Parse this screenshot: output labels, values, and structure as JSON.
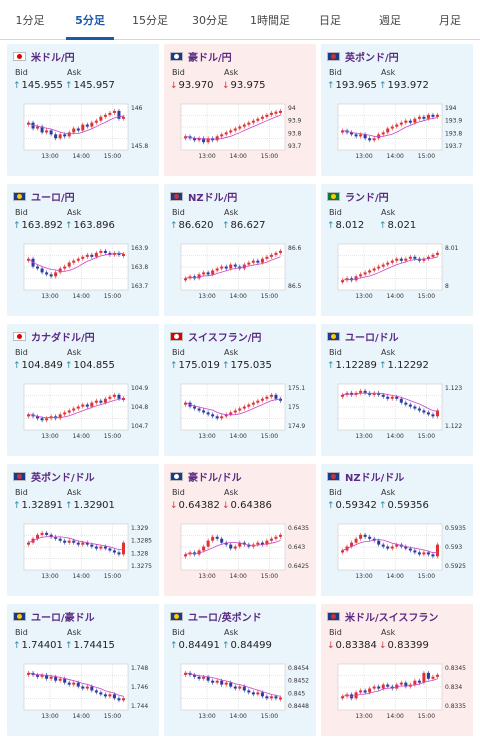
{
  "tabs": [
    {
      "label": "1分足",
      "active": false
    },
    {
      "label": "5分足",
      "active": true
    },
    {
      "label": "15分足",
      "active": false
    },
    {
      "label": "30分足",
      "active": false
    },
    {
      "label": "1時間足",
      "active": false
    },
    {
      "label": "日足",
      "active": false
    },
    {
      "label": "週足",
      "active": false
    },
    {
      "label": "月足",
      "active": false
    }
  ],
  "labels": {
    "bid": "Bid",
    "ask": "Ask"
  },
  "time_labels": [
    "13:00",
    "14:00",
    "15:00"
  ],
  "colors": {
    "up_bg": "#e9f4fb",
    "down_bg": "#fcecec",
    "up_arrow": "#2a8aa0",
    "down_arrow": "#d03a3a",
    "candle_up": "#e03030",
    "candle_down": "#2a3aa0",
    "ma": "#cc44cc",
    "pair": "#5b2a82"
  },
  "pairs": [
    {
      "name": "米ドル/円",
      "dir": "up",
      "bid": "145.955",
      "ask": "145.957",
      "flag": "jp-us",
      "yticks": [
        "146",
        "145.8"
      ],
      "trend": [
        0.6,
        0.45,
        0.5,
        0.35,
        0.4,
        0.3,
        0.2,
        0.3,
        0.25,
        0.35,
        0.45,
        0.4,
        0.55,
        0.5,
        0.6,
        0.65,
        0.75,
        0.8,
        0.85,
        0.9,
        0.7,
        0.75
      ]
    },
    {
      "name": "豪ドル/円",
      "dir": "down",
      "bid": "93.970",
      "ask": "93.975",
      "flag": "au-jp",
      "yticks": [
        "94",
        "93.9",
        "93.8",
        "93.7"
      ],
      "trend": [
        0.25,
        0.2,
        0.15,
        0.2,
        0.1,
        0.2,
        0.15,
        0.25,
        0.3,
        0.35,
        0.4,
        0.45,
        0.5,
        0.55,
        0.6,
        0.65,
        0.7,
        0.75,
        0.8,
        0.85,
        0.88,
        0.9
      ]
    },
    {
      "name": "英ポンド/円",
      "dir": "up",
      "bid": "193.965",
      "ask": "193.972",
      "flag": "gb-jp",
      "yticks": [
        "194",
        "193.9",
        "193.8",
        "193.7"
      ],
      "trend": [
        0.4,
        0.35,
        0.3,
        0.25,
        0.3,
        0.2,
        0.15,
        0.2,
        0.3,
        0.35,
        0.45,
        0.5,
        0.55,
        0.6,
        0.65,
        0.6,
        0.7,
        0.75,
        0.7,
        0.8,
        0.75,
        0.8
      ]
    },
    {
      "name": "ユーロ/円",
      "dir": "up",
      "bid": "163.892",
      "ask": "163.896",
      "flag": "eu-jp",
      "yticks": [
        "163.9",
        "163.8",
        "163.7"
      ],
      "trend": [
        0.7,
        0.5,
        0.45,
        0.35,
        0.3,
        0.25,
        0.35,
        0.45,
        0.5,
        0.6,
        0.65,
        0.7,
        0.75,
        0.8,
        0.75,
        0.85,
        0.9,
        0.85,
        0.8,
        0.85,
        0.8,
        0.82
      ]
    },
    {
      "name": "NZドル/円",
      "dir": "up",
      "bid": "86.620",
      "ask": "86.627",
      "flag": "nz-jp",
      "yticks": [
        "86.6",
        "86.5"
      ],
      "trend": [
        0.2,
        0.25,
        0.2,
        0.3,
        0.35,
        0.3,
        0.4,
        0.45,
        0.5,
        0.45,
        0.55,
        0.5,
        0.45,
        0.55,
        0.6,
        0.65,
        0.6,
        0.7,
        0.75,
        0.8,
        0.85,
        0.9
      ]
    },
    {
      "name": "ランド/円",
      "dir": "up",
      "bid": "8.012",
      "ask": "8.021",
      "flag": "za-jp",
      "yticks": [
        "8.01",
        "8"
      ],
      "trend": [
        0.15,
        0.2,
        0.15,
        0.25,
        0.3,
        0.35,
        0.4,
        0.45,
        0.5,
        0.55,
        0.6,
        0.65,
        0.7,
        0.65,
        0.7,
        0.75,
        0.7,
        0.65,
        0.7,
        0.75,
        0.8,
        0.85
      ]
    },
    {
      "name": "カナダドル/円",
      "dir": "up",
      "bid": "104.849",
      "ask": "104.855",
      "flag": "ca-jp",
      "yticks": [
        "104.9",
        "104.8",
        "104.7"
      ],
      "trend": [
        0.3,
        0.25,
        0.2,
        0.15,
        0.2,
        0.25,
        0.2,
        0.3,
        0.35,
        0.4,
        0.45,
        0.5,
        0.55,
        0.5,
        0.6,
        0.65,
        0.6,
        0.7,
        0.75,
        0.8,
        0.7,
        0.72
      ]
    },
    {
      "name": "スイスフラン/円",
      "dir": "up",
      "bid": "175.019",
      "ask": "175.035",
      "flag": "ch-jp",
      "yticks": [
        "175.1",
        "175",
        "174.9"
      ],
      "trend": [
        0.6,
        0.5,
        0.45,
        0.4,
        0.35,
        0.3,
        0.25,
        0.2,
        0.25,
        0.3,
        0.35,
        0.4,
        0.45,
        0.5,
        0.55,
        0.6,
        0.65,
        0.7,
        0.75,
        0.8,
        0.7,
        0.65
      ]
    },
    {
      "name": "ユーロ/ドル",
      "dir": "up",
      "bid": "1.12289",
      "ask": "1.12292",
      "flag": "eu-us",
      "yticks": [
        "1.123",
        "1.122"
      ],
      "trend": [
        0.8,
        0.85,
        0.8,
        0.85,
        0.9,
        0.85,
        0.8,
        0.85,
        0.8,
        0.75,
        0.7,
        0.75,
        0.7,
        0.6,
        0.55,
        0.5,
        0.45,
        0.4,
        0.35,
        0.3,
        0.25,
        0.4
      ]
    },
    {
      "name": "英ポンド/ドル",
      "dir": "up",
      "bid": "1.32891",
      "ask": "1.32901",
      "flag": "gb-us",
      "yticks": [
        "1.329",
        "1.3285",
        "1.328",
        "1.3275"
      ],
      "trend": [
        0.6,
        0.7,
        0.8,
        0.85,
        0.8,
        0.75,
        0.7,
        0.65,
        0.6,
        0.65,
        0.6,
        0.55,
        0.6,
        0.55,
        0.5,
        0.45,
        0.5,
        0.45,
        0.4,
        0.35,
        0.3,
        0.6
      ]
    },
    {
      "name": "豪ドル/ドル",
      "dir": "down",
      "bid": "0.64382",
      "ask": "0.64386",
      "flag": "au-us",
      "yticks": [
        "0.6435",
        "0.643",
        "0.6425"
      ],
      "trend": [
        0.3,
        0.35,
        0.3,
        0.4,
        0.5,
        0.65,
        0.75,
        0.7,
        0.6,
        0.55,
        0.45,
        0.5,
        0.6,
        0.55,
        0.5,
        0.55,
        0.6,
        0.55,
        0.65,
        0.7,
        0.75,
        0.8
      ]
    },
    {
      "name": "NZドル/ドル",
      "dir": "up",
      "bid": "0.59342",
      "ask": "0.59356",
      "flag": "nz-us",
      "yticks": [
        "0.5935",
        "0.593",
        "0.5925"
      ],
      "trend": [
        0.4,
        0.5,
        0.6,
        0.7,
        0.8,
        0.75,
        0.7,
        0.65,
        0.55,
        0.5,
        0.45,
        0.5,
        0.55,
        0.5,
        0.45,
        0.4,
        0.35,
        0.3,
        0.35,
        0.3,
        0.25,
        0.55
      ]
    },
    {
      "name": "ユーロ/豪ドル",
      "dir": "up",
      "bid": "1.74401",
      "ask": "1.74415",
      "flag": "eu-au",
      "yticks": [
        "1.748",
        "1.746",
        "1.744"
      ],
      "trend": [
        0.85,
        0.8,
        0.75,
        0.8,
        0.7,
        0.75,
        0.65,
        0.7,
        0.6,
        0.55,
        0.6,
        0.5,
        0.45,
        0.5,
        0.4,
        0.35,
        0.3,
        0.25,
        0.3,
        0.2,
        0.15,
        0.2
      ]
    },
    {
      "name": "ユーロ/英ポンド",
      "dir": "up",
      "bid": "0.84491",
      "ask": "0.84499",
      "flag": "eu-gb",
      "yticks": [
        "0.8454",
        "0.8452",
        "0.845",
        "0.8448"
      ],
      "trend": [
        0.85,
        0.8,
        0.75,
        0.7,
        0.75,
        0.65,
        0.6,
        0.65,
        0.55,
        0.6,
        0.5,
        0.45,
        0.5,
        0.4,
        0.35,
        0.3,
        0.35,
        0.25,
        0.2,
        0.25,
        0.2,
        0.22
      ]
    },
    {
      "name": "米ドル/スイスフラン",
      "dir": "down",
      "bid": "0.83384",
      "ask": "0.83399",
      "flag": "us-ch",
      "yticks": [
        "0.8345",
        "0.834",
        "0.8335"
      ],
      "trend": [
        0.25,
        0.3,
        0.2,
        0.35,
        0.4,
        0.35,
        0.45,
        0.5,
        0.45,
        0.55,
        0.5,
        0.45,
        0.55,
        0.6,
        0.5,
        0.55,
        0.65,
        0.6,
        0.85,
        0.7,
        0.75,
        0.8
      ]
    }
  ]
}
